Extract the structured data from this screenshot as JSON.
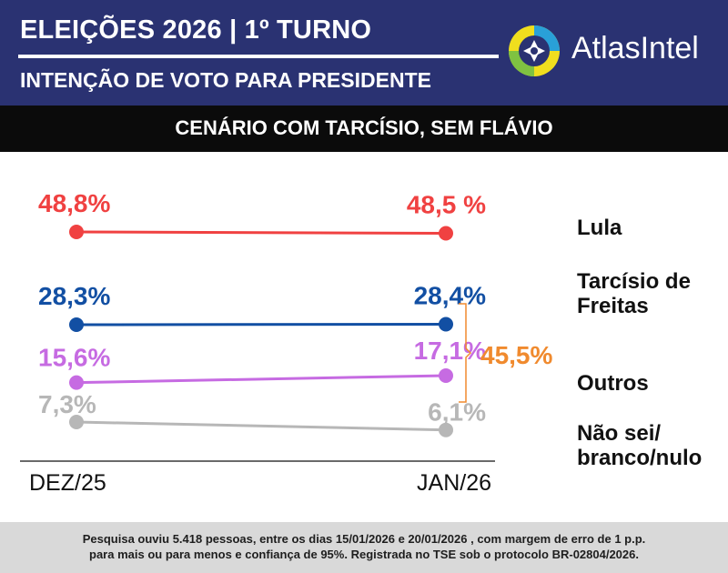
{
  "header": {
    "title": "ELEIÇÕES 2026 | 1º TURNO",
    "subtitle": "INTENÇÃO DE VOTO PARA PRESIDENTE",
    "brand": "AtlasIntel",
    "background_color": "#2a3272"
  },
  "scenario": "CENÁRIO COM TARCÍSIO, SEM FLÁVIO",
  "chart_data": {
    "type": "line",
    "x": [
      "DEZ/25",
      "JAN/26"
    ],
    "series": [
      {
        "name": "Lula",
        "label_lines": [
          "Lula"
        ],
        "values": [
          48.8,
          48.5
        ],
        "value_labels": [
          "48,8%",
          "48,5 %"
        ],
        "color": "#f04141"
      },
      {
        "name": "Tarcísio de Freitas",
        "label_lines": [
          "Tarcísio de",
          "Freitas"
        ],
        "values": [
          28.3,
          28.4
        ],
        "value_labels": [
          "28,3%",
          "28,4%"
        ],
        "color": "#124fa3"
      },
      {
        "name": "Outros",
        "label_lines": [
          "Outros"
        ],
        "values": [
          15.6,
          17.1
        ],
        "value_labels": [
          "15,6%",
          "17,1%"
        ],
        "color": "#c66be2"
      },
      {
        "name": "Não sei/ branco/nulo",
        "label_lines": [
          "Não sei/",
          "branco/nulo"
        ],
        "values": [
          7.3,
          6.1
        ],
        "value_labels": [
          "7,3%",
          "6,1%"
        ],
        "color": "#b7b7b7"
      }
    ],
    "bracket": {
      "label": "45,5%",
      "color": "#f08a2e",
      "groups": [
        "Tarcísio de Freitas",
        "Outros"
      ]
    }
  },
  "footnote": [
    "Pesquisa ouviu 5.418 pessoas, entre os dias 15/01/2026 e 20/01/2026 , com margem de erro de 1 p.p.",
    "para mais ou para menos e confiança de 95%. Registrada no TSE sob o protocolo BR-02804/2026."
  ]
}
